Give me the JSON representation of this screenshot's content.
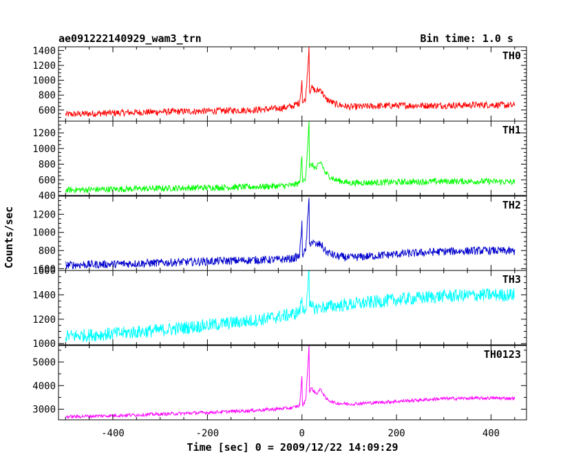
{
  "header": {
    "title": "ae091222140929_wam3_trn",
    "bin_time": "Bin time: 1.0 s"
  },
  "axes": {
    "xlabel": "Time [sec] 0 = 2009/12/22 14:09:29",
    "ylabel": "Counts/sec"
  },
  "chart_data": {
    "type": "line",
    "title": "ae091222140929_wam3_trn",
    "xlabel": "Time [sec] 0 = 2009/12/22 14:09:29",
    "ylabel": "Counts/sec",
    "xlim": [
      -515,
      475
    ],
    "x_ticks": [
      -400,
      -200,
      0,
      200,
      400
    ],
    "grid": false,
    "panels": [
      {
        "name": "TH0",
        "color": "#ff0000",
        "ylim": [
          450,
          1450
        ],
        "y_ticks": [
          600,
          800,
          1000,
          1200,
          1400
        ],
        "x": [
          -500,
          -400,
          -300,
          -200,
          -100,
          -50,
          -20,
          -5,
          0,
          1,
          3,
          8,
          15,
          16,
          20,
          30,
          40,
          50,
          70,
          100,
          200,
          300,
          400,
          450
        ],
        "values": [
          540,
          560,
          575,
          585,
          600,
          620,
          650,
          700,
          1000,
          700,
          700,
          760,
          1450,
          850,
          900,
          850,
          880,
          750,
          680,
          640,
          660,
          660,
          670,
          660
        ],
        "noise": 45
      },
      {
        "name": "TH1",
        "color": "#00ff00",
        "ylim": [
          400,
          1350
        ],
        "y_ticks": [
          400,
          600,
          800,
          1000,
          1200
        ],
        "x": [
          -500,
          -400,
          -300,
          -200,
          -100,
          -50,
          -20,
          -5,
          0,
          1,
          3,
          8,
          15,
          16,
          20,
          30,
          40,
          50,
          70,
          100,
          200,
          300,
          400,
          450
        ],
        "values": [
          470,
          480,
          490,
          500,
          510,
          520,
          530,
          560,
          900,
          580,
          580,
          640,
          1350,
          750,
          800,
          740,
          830,
          680,
          600,
          560,
          570,
          580,
          580,
          570
        ],
        "noise": 40
      },
      {
        "name": "TH2",
        "color": "#0000cc",
        "ylim": [
          580,
          1400
        ],
        "y_ticks": [
          600,
          800,
          1000,
          1200
        ],
        "x": [
          -500,
          -400,
          -300,
          -200,
          -100,
          -50,
          -20,
          -5,
          0,
          1,
          3,
          8,
          15,
          16,
          20,
          30,
          40,
          50,
          70,
          100,
          200,
          300,
          400,
          450
        ],
        "values": [
          640,
          650,
          665,
          680,
          695,
          700,
          710,
          740,
          1130,
          760,
          760,
          800,
          1380,
          870,
          900,
          860,
          870,
          790,
          740,
          720,
          760,
          790,
          800,
          790
        ],
        "noise": 45
      },
      {
        "name": "TH3",
        "color": "#00ffff",
        "ylim": [
          990,
          1600
        ],
        "y_ticks": [
          1000,
          1200,
          1400,
          1600
        ],
        "x": [
          -500,
          -400,
          -300,
          -200,
          -100,
          -50,
          -20,
          -5,
          0,
          1,
          3,
          8,
          15,
          16,
          20,
          30,
          40,
          50,
          70,
          100,
          200,
          300,
          400,
          450
        ],
        "values": [
          1060,
          1080,
          1110,
          1150,
          1190,
          1220,
          1240,
          1260,
          1380,
          1270,
          1270,
          1280,
          1600,
          1300,
          1300,
          1290,
          1300,
          1300,
          1310,
          1320,
          1360,
          1390,
          1400,
          1400
        ],
        "noise": 55
      },
      {
        "name": "TH0123",
        "color": "#ff00ff",
        "ylim": [
          2550,
          5700
        ],
        "y_ticks": [
          3000,
          4000,
          5000
        ],
        "x": [
          -500,
          -400,
          -300,
          -200,
          -100,
          -50,
          -20,
          -5,
          0,
          1,
          3,
          8,
          15,
          16,
          20,
          30,
          40,
          50,
          70,
          100,
          200,
          300,
          400,
          450
        ],
        "values": [
          2680,
          2730,
          2790,
          2860,
          2950,
          3010,
          3060,
          3150,
          4400,
          3200,
          3200,
          3380,
          5700,
          3700,
          3900,
          3650,
          3850,
          3450,
          3260,
          3220,
          3330,
          3450,
          3470,
          3460
        ],
        "noise": 70
      }
    ]
  }
}
